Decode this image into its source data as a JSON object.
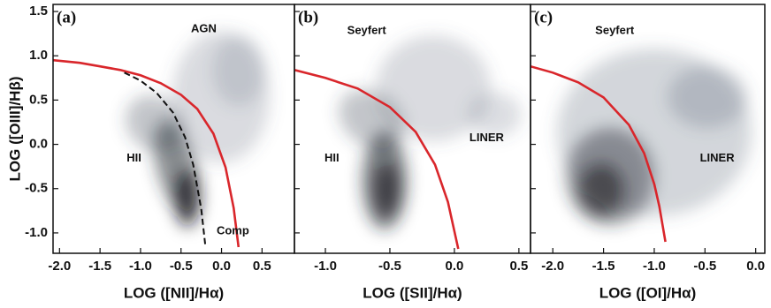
{
  "chart_data": [
    {
      "type": "line",
      "label": "(a)",
      "ylabel": "LOG ([OIII]/Hβ)",
      "xlabel": "LOG ([NII]/Hα)",
      "xlim": [
        -2.08,
        0.9
      ],
      "ylim": [
        -1.23,
        1.58
      ],
      "xticks": [
        {
          "value": -2.0,
          "label": "-2.0"
        },
        -1.5,
        {
          "value": -1.0,
          "label": "-1.0"
        },
        -0.5,
        {
          "value": 0.0,
          "label": "0.0"
        },
        0.5
      ],
      "yticks": [
        {
          "value": -1.0,
          "label": "-1.0"
        },
        -0.5,
        {
          "value": 0.0,
          "label": "0.0"
        },
        0.5,
        {
          "value": 1.0,
          "label": "1.0"
        },
        1.5
      ],
      "annotations": [
        {
          "text": "AGN",
          "x": -0.22,
          "y": 1.3
        },
        {
          "text": "HII",
          "x": -1.08,
          "y": -0.16
        },
        {
          "text": "Comp",
          "x": 0.14,
          "y": -0.98
        }
      ],
      "series": [
        {
          "color": "#d9262b",
          "linestyle": "solid",
          "x": [
            -2.08,
            -1.75,
            -1.5,
            -1.25,
            -1.0,
            -0.75,
            -0.5,
            -0.3,
            -0.1,
            0.05,
            0.15,
            0.21
          ],
          "values": [
            0.95,
            0.92,
            0.88,
            0.84,
            0.78,
            0.69,
            0.56,
            0.4,
            0.12,
            -0.26,
            -0.72,
            -1.16
          ]
        },
        {
          "color": "#111111",
          "linestyle": "dashed",
          "x": [
            -1.2,
            -1.0,
            -0.8,
            -0.6,
            -0.45,
            -0.35,
            -0.25,
            -0.2
          ],
          "values": [
            0.81,
            0.72,
            0.58,
            0.36,
            0.08,
            -0.23,
            -0.73,
            -1.14
          ]
        }
      ]
    },
    {
      "type": "line",
      "label": "(b)",
      "xlabel": "LOG ([SII]/Hα)",
      "xlim": [
        -1.24,
        0.59
      ],
      "ylim": [
        -1.23,
        1.58
      ],
      "xticks": [
        {
          "value": -1.0,
          "label": "-1.0"
        },
        -0.5,
        {
          "value": 0.0,
          "label": "0.0"
        },
        0.5
      ],
      "annotations": [
        {
          "text": "Seyfert",
          "x": -0.68,
          "y": 1.28
        },
        {
          "text": "HII",
          "x": -0.95,
          "y": -0.16
        },
        {
          "text": "LINER",
          "x": 0.25,
          "y": 0.07
        }
      ],
      "series": [
        {
          "color": "#d9262b",
          "linestyle": "solid",
          "x": [
            -1.24,
            -1.0,
            -0.75,
            -0.5,
            -0.3,
            -0.15,
            -0.05,
            0.03
          ],
          "values": [
            0.84,
            0.75,
            0.63,
            0.42,
            0.14,
            -0.23,
            -0.65,
            -1.18
          ]
        }
      ]
    },
    {
      "type": "line",
      "label": "(c)",
      "xlabel": "LOG ([OI]/Hα)",
      "xlim": [
        -2.22,
        0.09
      ],
      "ylim": [
        -1.23,
        1.58
      ],
      "xticks": [
        {
          "value": -2.0,
          "label": "-2.0"
        },
        -1.5,
        {
          "value": -1.0,
          "label": "-1.0"
        },
        -0.5,
        {
          "value": 0.0,
          "label": "0.0"
        }
      ],
      "annotations": [
        {
          "text": "Seyfert",
          "x": -1.39,
          "y": 1.28
        },
        {
          "text": "LINER",
          "x": -0.38,
          "y": -0.16
        }
      ],
      "series": [
        {
          "color": "#d9262b",
          "linestyle": "solid",
          "x": [
            -2.22,
            -2.0,
            -1.75,
            -1.5,
            -1.25,
            -1.1,
            -1.0,
            -0.95,
            -0.89
          ],
          "values": [
            0.88,
            0.81,
            0.7,
            0.53,
            0.22,
            -0.1,
            -0.45,
            -0.7,
            -1.1
          ]
        }
      ]
    }
  ]
}
